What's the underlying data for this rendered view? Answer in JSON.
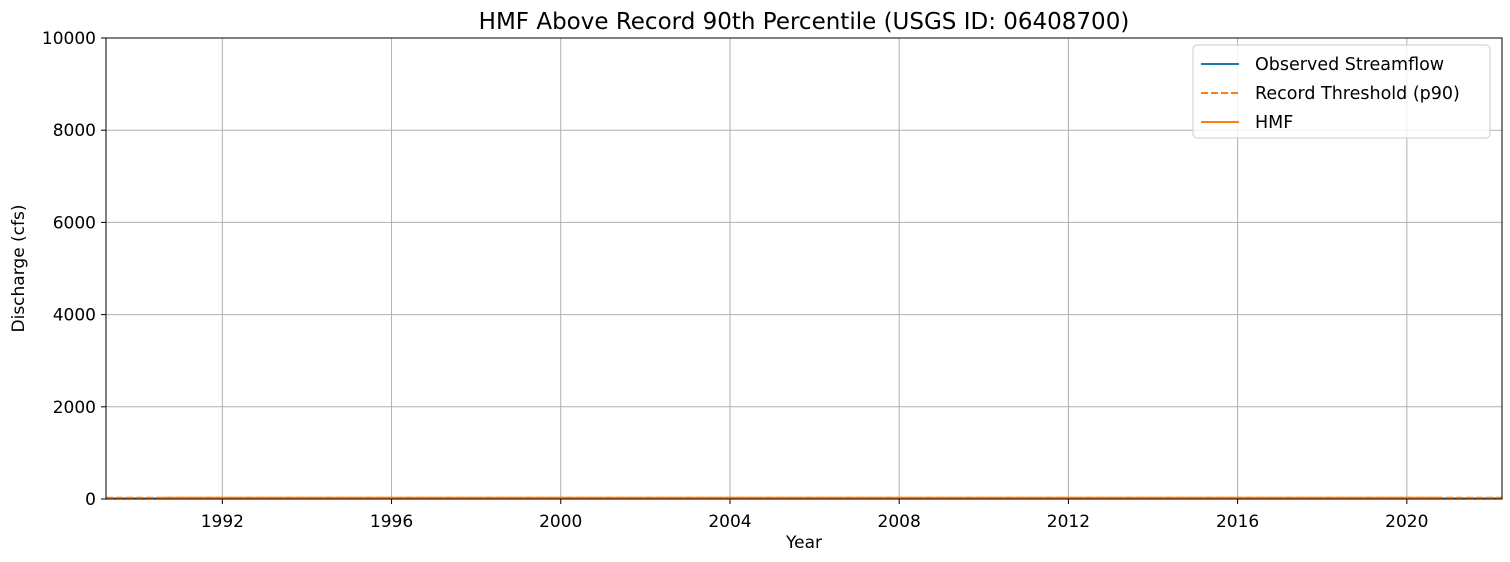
{
  "chart_data": {
    "type": "line",
    "title": "HMF Above Record 90th Percentile (USGS ID: 06408700)",
    "xlabel": "Year",
    "ylabel": "Discharge (cfs)",
    "xlim": [
      1989.25,
      2022.25
    ],
    "ylim": [
      0,
      10000
    ],
    "x_ticks": [
      1992,
      1996,
      2000,
      2004,
      2008,
      2012,
      2016,
      2020
    ],
    "y_ticks": [
      0,
      2000,
      4000,
      6000,
      8000,
      10000
    ],
    "grid": true,
    "legend_position": "top-right",
    "series": [
      {
        "name": "Observed Streamflow",
        "style": "solid",
        "color": "#1f77b4",
        "x": [
          1989.25,
          1991.0,
          2020.8,
          2022.25
        ],
        "y": [
          10,
          10,
          10,
          10
        ]
      },
      {
        "name": "Record Threshold (p90)",
        "style": "dashed",
        "color": "#ff7f0e",
        "x": [
          1989.25,
          2022.25
        ],
        "y": [
          25,
          25
        ]
      },
      {
        "name": "HMF",
        "style": "solid",
        "color": "#ff7f0e",
        "x": [
          1990.6,
          2020.8
        ],
        "y": [
          25,
          25
        ]
      }
    ]
  }
}
